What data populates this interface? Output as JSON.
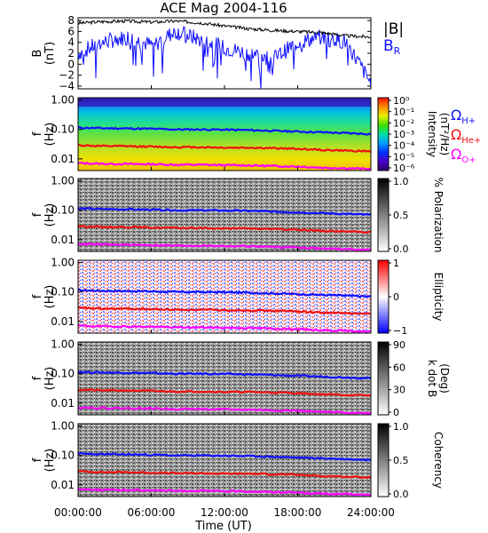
{
  "title": "ACE Mag 2004-116",
  "xaxis": {
    "label": "Time (UT)",
    "ticks": [
      "00:00:00",
      "06:00:00",
      "12:00:00",
      "18:00:00",
      "24:00:00"
    ],
    "range_hours": [
      0,
      24
    ]
  },
  "colors": {
    "btotal": "#000000",
    "br": "#1010ff",
    "he": "#ee1010",
    "o": "#ff00ff",
    "h": "#1010ff"
  },
  "chart_data": [
    {
      "type": "line",
      "panel": "magnetic-field",
      "ylabel": "B\n(nT)",
      "yticks": [
        "8",
        "6",
        "4",
        "2",
        "0",
        "−2",
        "−4"
      ],
      "ylim": [
        -4.5,
        8.5
      ],
      "legend": [
        "|B|",
        "B_R"
      ],
      "series": [
        {
          "name": "|B|",
          "x_hours": [
            0,
            2,
            4,
            6,
            8,
            10,
            12,
            14,
            16,
            18,
            20,
            22,
            24
          ],
          "values": [
            7.5,
            7.8,
            7.9,
            7.7,
            7.9,
            7.6,
            7.0,
            6.5,
            6.2,
            6.0,
            5.8,
            5.2,
            5.0
          ]
        },
        {
          "name": "B_R",
          "x_hours": [
            0,
            2,
            4,
            6,
            8,
            10,
            12,
            14,
            16,
            18,
            20,
            22,
            24
          ],
          "values": [
            2.0,
            4.0,
            5.0,
            3.5,
            6.0,
            4.5,
            3.0,
            2.0,
            1.0,
            4.0,
            5.0,
            4.0,
            -3.5
          ]
        }
      ]
    },
    {
      "type": "heatmap",
      "panel": "intensity",
      "ylabel": "f\n(Hz)",
      "yticks": [
        "1.00",
        "0.10",
        "0.01"
      ],
      "colorbar": {
        "label": "Intensity\n(nT²/Hz)",
        "ticks": [
          "10⁰",
          "10⁻¹",
          "10⁻²",
          "10⁻³",
          "10⁻⁴",
          "10⁻⁵",
          "10⁻⁶"
        ]
      },
      "legend": [
        "ΩH+",
        "ΩHe+",
        "ΩO+"
      ]
    },
    {
      "type": "heatmap",
      "panel": "polarization",
      "ylabel": "f\n(Hz)",
      "yticks": [
        "1.00",
        "0.10",
        "0.01"
      ],
      "colorbar": {
        "label": "% Polarization",
        "ticks": [
          "1.0",
          "0.5",
          "0.0"
        ]
      }
    },
    {
      "type": "heatmap",
      "panel": "ellipticity",
      "ylabel": "f\n(Hz)",
      "yticks": [
        "1.00",
        "0.10",
        "0.01"
      ],
      "colorbar": {
        "label": "Ellipticity",
        "ticks": [
          "1",
          "0",
          "−1"
        ]
      }
    },
    {
      "type": "heatmap",
      "panel": "k-dot-b",
      "ylabel": "f\n(Hz)",
      "yticks": [
        "1.00",
        "0.10",
        "0.01"
      ],
      "colorbar": {
        "label": "k dot B\n(Deg)",
        "ticks": [
          "90",
          "60",
          "30",
          "0"
        ]
      }
    },
    {
      "type": "heatmap",
      "panel": "coherency",
      "ylabel": "f\n(Hz)",
      "yticks": [
        "1.00",
        "0.10",
        "0.01"
      ],
      "colorbar": {
        "label": "Coherency",
        "ticks": [
          "1.0",
          "0.5",
          "0.0"
        ]
      }
    }
  ],
  "gyrofrequencies": {
    "h_plus_hz": [
      0.115,
      0.11,
      0.108,
      0.105,
      0.1,
      0.1,
      0.098,
      0.095,
      0.09,
      0.085,
      0.08,
      0.075,
      0.07
    ],
    "he_plus_hz": [
      0.029,
      0.027,
      0.027,
      0.026,
      0.025,
      0.025,
      0.024,
      0.024,
      0.023,
      0.022,
      0.02,
      0.019,
      0.018
    ],
    "o_plus_hz": [
      0.0072,
      0.0068,
      0.0067,
      0.0066,
      0.0063,
      0.0063,
      0.0061,
      0.006,
      0.0057,
      0.0055,
      0.005,
      0.0048,
      0.0045
    ],
    "x_hours": [
      0,
      2,
      4,
      6,
      8,
      10,
      12,
      14,
      16,
      18,
      20,
      22,
      24
    ]
  }
}
